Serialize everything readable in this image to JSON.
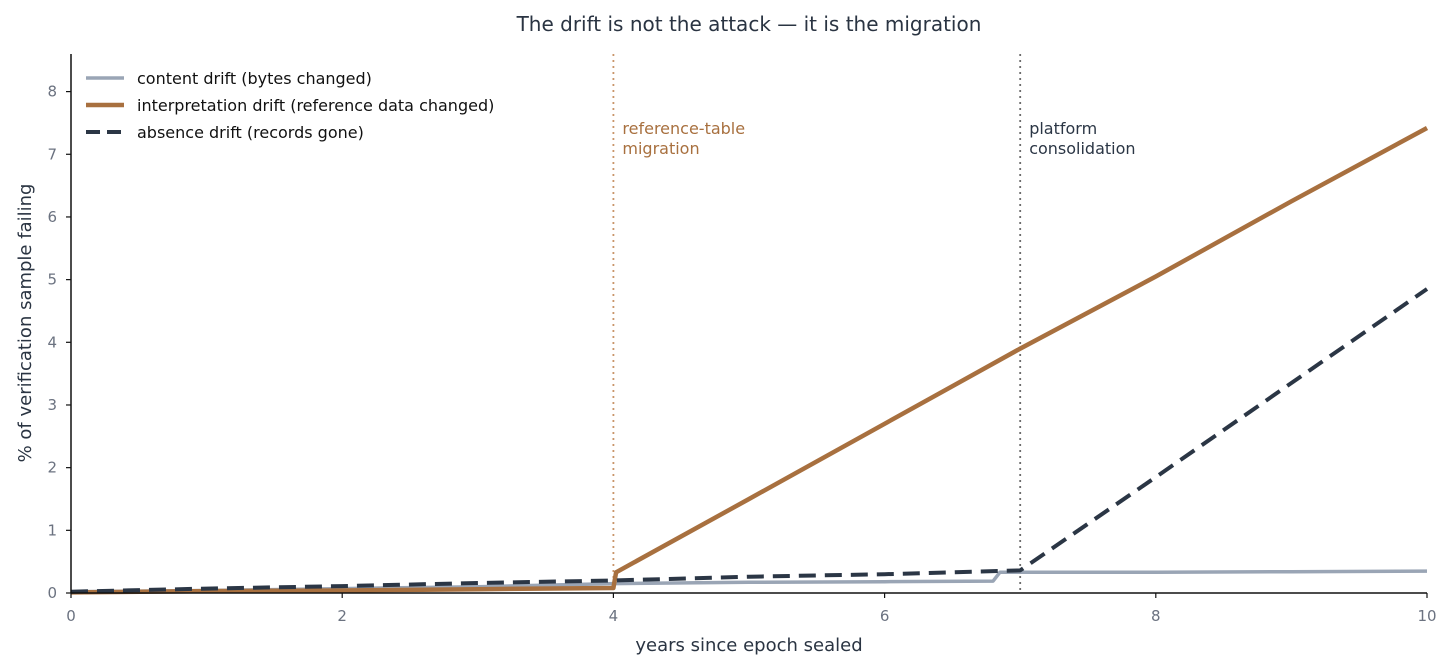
{
  "chart_data": {
    "type": "line",
    "title": "The drift is not the attack — it is the migration",
    "xlabel": "years since epoch sealed",
    "ylabel": "% of verification sample failing",
    "xlim": [
      0,
      10
    ],
    "ylim": [
      0,
      8.6
    ],
    "x_ticks": [
      0,
      2,
      4,
      6,
      8,
      10
    ],
    "y_ticks": [
      0,
      1,
      2,
      3,
      4,
      5,
      6,
      7,
      8
    ],
    "grid": false,
    "legend_position": "top-left",
    "series": [
      {
        "name": "content drift (bytes changed)",
        "color": "#9aa5b5",
        "style": "solid",
        "points": [
          [
            0,
            0.02
          ],
          [
            1,
            0.04
          ],
          [
            2,
            0.07
          ],
          [
            3,
            0.1
          ],
          [
            4,
            0.15
          ],
          [
            5,
            0.17
          ],
          [
            6,
            0.18
          ],
          [
            6.8,
            0.19
          ],
          [
            6.85,
            0.33
          ],
          [
            7,
            0.33
          ],
          [
            8,
            0.33
          ],
          [
            9,
            0.34
          ],
          [
            10,
            0.35
          ]
        ]
      },
      {
        "name": "interpretation drift (reference data changed)",
        "color": "#a8703f",
        "style": "solid",
        "points": [
          [
            0,
            0.01
          ],
          [
            1,
            0.03
          ],
          [
            2,
            0.04
          ],
          [
            3,
            0.06
          ],
          [
            4,
            0.08
          ],
          [
            4.02,
            0.33
          ],
          [
            5,
            1.5
          ],
          [
            6,
            2.7
          ],
          [
            7,
            3.9
          ],
          [
            8,
            5.05
          ],
          [
            9,
            6.25
          ],
          [
            10,
            7.42
          ]
        ]
      },
      {
        "name": "absence drift (records gone)",
        "color": "#2b3645",
        "style": "dashed",
        "points": [
          [
            0,
            0.02
          ],
          [
            1,
            0.07
          ],
          [
            2,
            0.11
          ],
          [
            3,
            0.16
          ],
          [
            4,
            0.2
          ],
          [
            5,
            0.26
          ],
          [
            6,
            0.3
          ],
          [
            7,
            0.36
          ],
          [
            8,
            1.85
          ],
          [
            9,
            3.35
          ],
          [
            10,
            4.85
          ]
        ]
      }
    ],
    "annotations": [
      {
        "x": 4,
        "text_lines": [
          "reference-table",
          "migration"
        ],
        "color": "#a8703f",
        "line_color": "#c9956a"
      },
      {
        "x": 7,
        "text_lines": [
          "platform",
          "consolidation"
        ],
        "color": "#2b3645",
        "line_color": "#6b6b6b"
      }
    ]
  }
}
